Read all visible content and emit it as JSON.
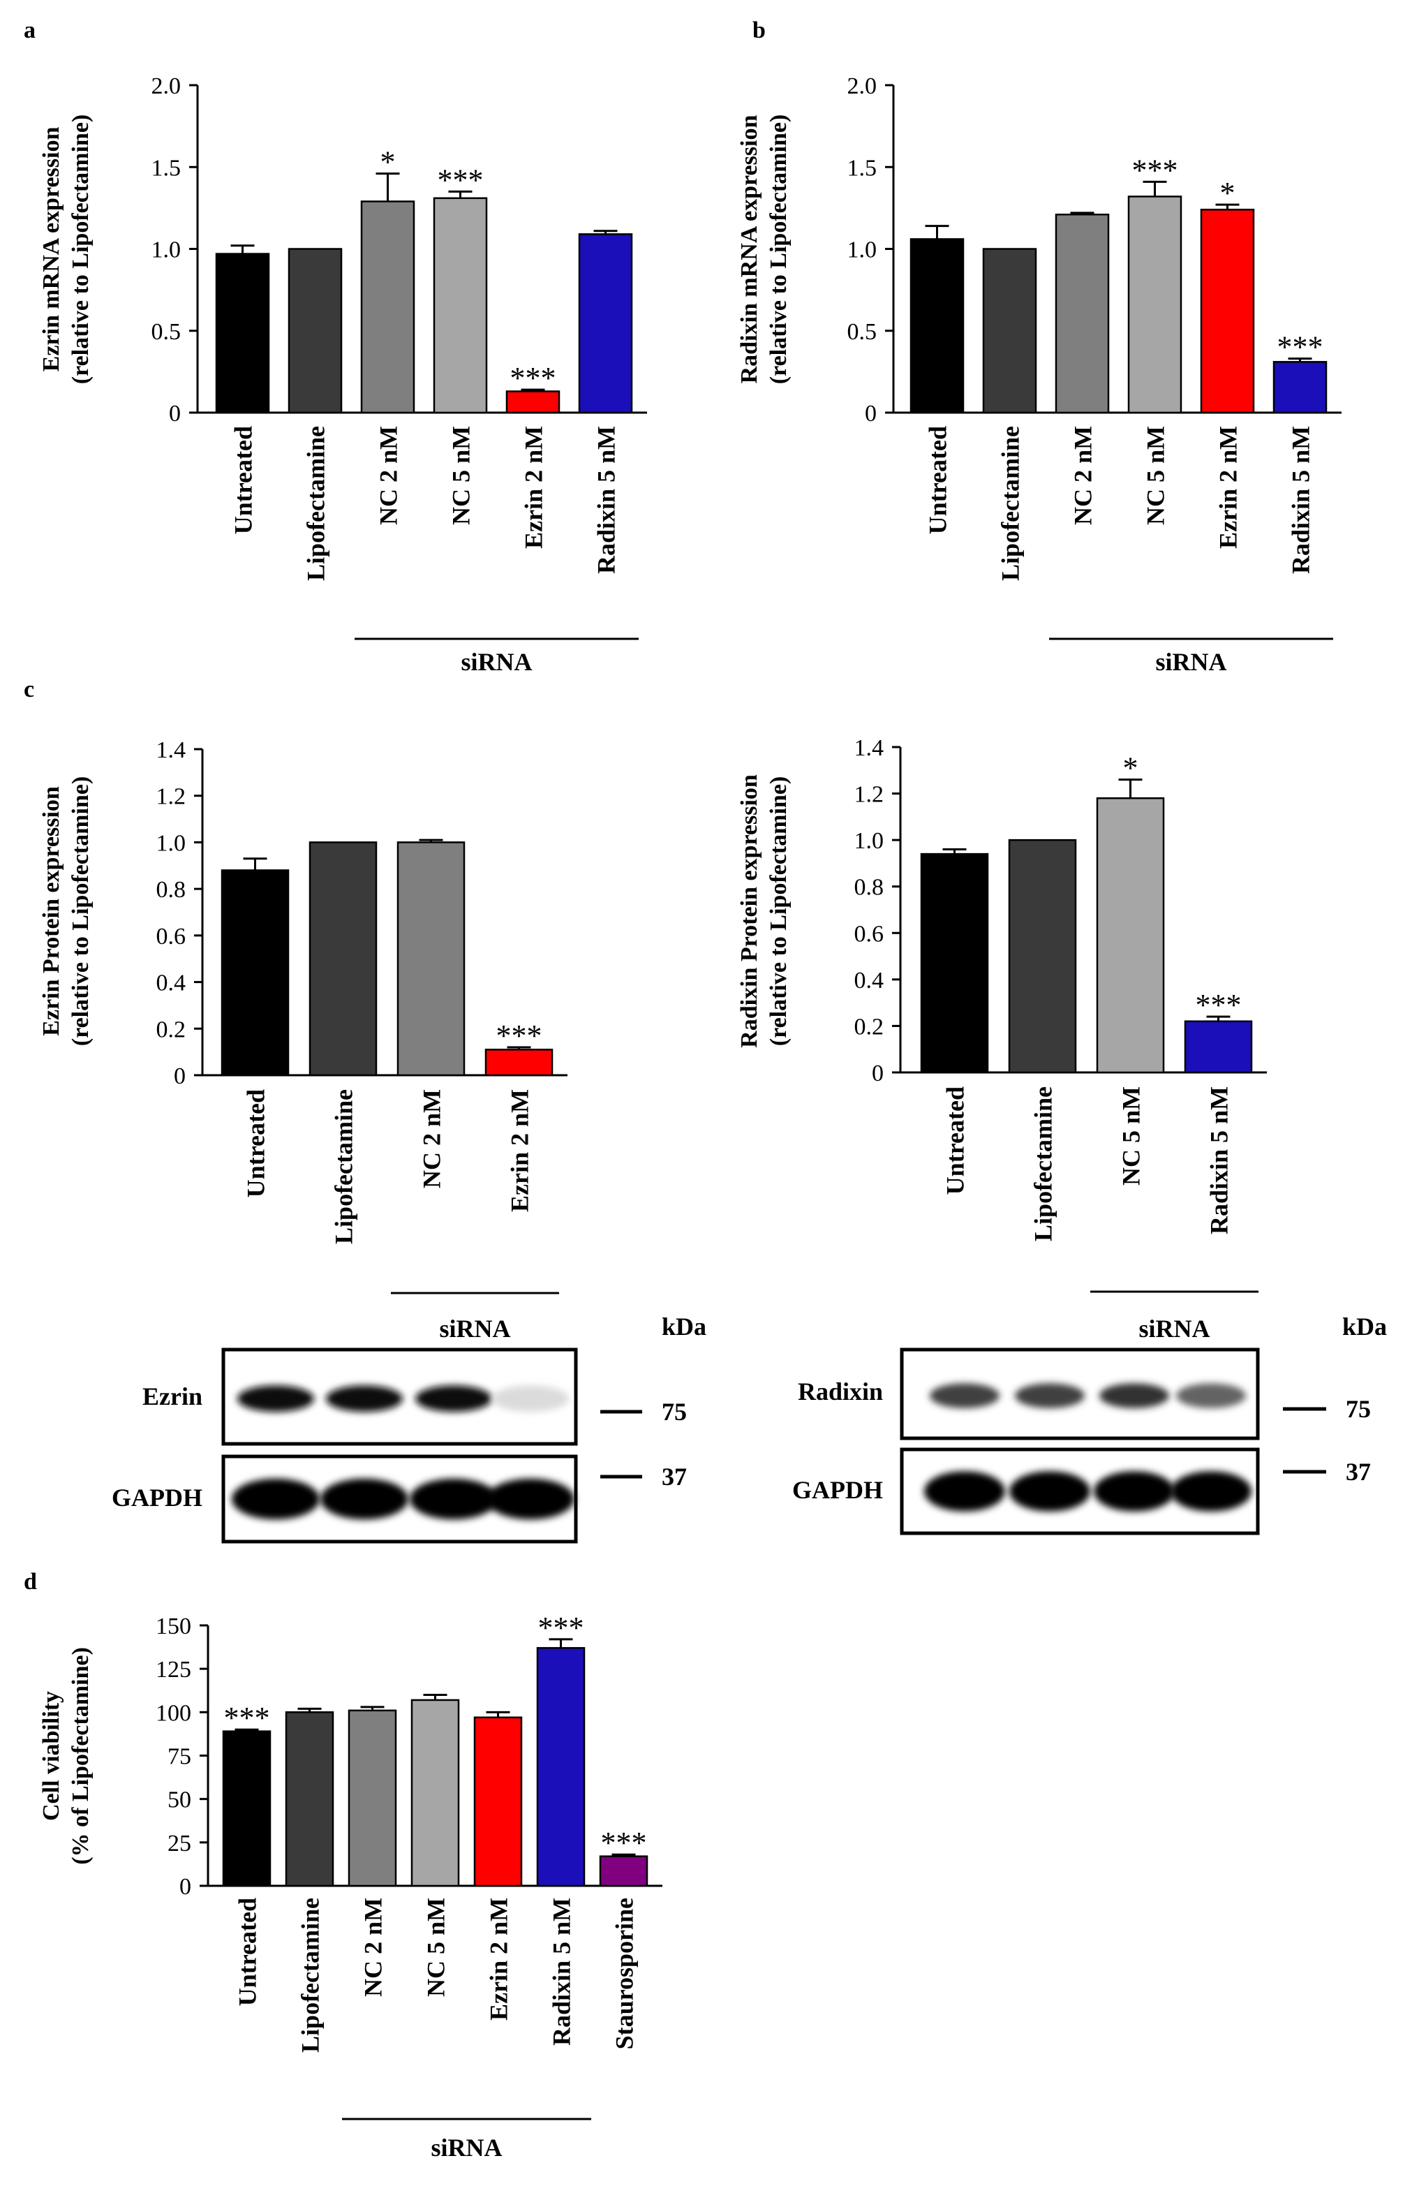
{
  "chart_data": [
    {
      "type": "bar",
      "panel": "a",
      "ylabel_line1": "Ezrin mRNA expression",
      "ylabel_line2": "(relative to Lipofectamine)",
      "ylim": [
        0,
        2.0
      ],
      "yticks": [
        0,
        0.5,
        1.0,
        1.5,
        2.0
      ],
      "ytick_labels": [
        "0",
        "0.5",
        "1.0",
        "1.5",
        "2.0"
      ],
      "categories": [
        "Untreated",
        "Lipofectamine",
        "NC 2 nM",
        "NC 5 nM",
        "Ezrin 2 nM",
        "Radixin 5 nM"
      ],
      "values": [
        0.97,
        1.0,
        1.29,
        1.31,
        0.13,
        1.09
      ],
      "errors": [
        0.05,
        0.0,
        0.17,
        0.04,
        0.01,
        0.02
      ],
      "colors": [
        "#000000",
        "#3a3a3a",
        "#7f7f7f",
        "#a6a6a6",
        "#ff0000",
        "#1a0fb8"
      ],
      "significance": [
        "",
        "",
        "*",
        "***",
        "***",
        ""
      ],
      "group_label": "siRNA",
      "group_start": 2,
      "group_end": 5
    },
    {
      "type": "bar",
      "panel": "b",
      "ylabel_line1": "Radixin mRNA expression",
      "ylabel_line2": "(relative to Lipofectamine)",
      "ylim": [
        0,
        2.0
      ],
      "yticks": [
        0,
        0.5,
        1.0,
        1.5,
        2.0
      ],
      "ytick_labels": [
        "0",
        "0.5",
        "1.0",
        "1.5",
        "2.0"
      ],
      "categories": [
        "Untreated",
        "Lipofectamine",
        "NC 2 nM",
        "NC 5 nM",
        "Ezrin 2 nM",
        "Radixin 5 nM"
      ],
      "values": [
        1.06,
        1.0,
        1.21,
        1.32,
        1.24,
        0.31
      ],
      "errors": [
        0.08,
        0.0,
        0.01,
        0.09,
        0.03,
        0.02
      ],
      "colors": [
        "#000000",
        "#3a3a3a",
        "#7f7f7f",
        "#a6a6a6",
        "#ff0000",
        "#1a0fb8"
      ],
      "significance": [
        "",
        "",
        "",
        "***",
        "*",
        "***"
      ],
      "group_label": "siRNA",
      "group_start": 2,
      "group_end": 5
    },
    {
      "type": "bar",
      "panel": "c",
      "ylabel_line1": "Ezrin Protein expression",
      "ylabel_line2": "(relative to Lipofectamine)",
      "ylim": [
        0,
        1.4
      ],
      "yticks": [
        0,
        0.2,
        0.4,
        0.6,
        0.8,
        1.0,
        1.2,
        1.4
      ],
      "ytick_labels": [
        "0",
        "0.2",
        "0.4",
        "0.6",
        "0.8",
        "1.0",
        "1.2",
        "1.4"
      ],
      "categories": [
        "Untreated",
        "Lipofectamine",
        "NC 2 nM",
        "Ezrin 2 nM"
      ],
      "values": [
        0.88,
        1.0,
        1.0,
        0.11
      ],
      "errors": [
        0.05,
        0.0,
        0.01,
        0.01
      ],
      "colors": [
        "#000000",
        "#3a3a3a",
        "#7f7f7f",
        "#ff0000"
      ],
      "significance": [
        "",
        "",
        "",
        "***"
      ],
      "group_label": "siRNA",
      "group_start": 2,
      "group_end": 3
    },
    {
      "type": "bar",
      "panel": "",
      "ylabel_line1": "Radixin Protein expression",
      "ylabel_line2": "(relative to Lipofectamine)",
      "ylim": [
        0,
        1.4
      ],
      "yticks": [
        0,
        0.2,
        0.4,
        0.6,
        0.8,
        1.0,
        1.2,
        1.4
      ],
      "ytick_labels": [
        "0",
        "0.2",
        "0.4",
        "0.6",
        "0.8",
        "1.0",
        "1.2",
        "1.4"
      ],
      "categories": [
        "Untreated",
        "Lipofectamine",
        "NC 5 nM",
        "Radixin 5 nM"
      ],
      "values": [
        0.94,
        1.0,
        1.18,
        0.22
      ],
      "errors": [
        0.02,
        0.0,
        0.08,
        0.02
      ],
      "colors": [
        "#000000",
        "#3a3a3a",
        "#a6a6a6",
        "#1a0fb8"
      ],
      "significance": [
        "",
        "",
        "*",
        "***"
      ],
      "group_label": "siRNA",
      "group_start": 2,
      "group_end": 3
    },
    {
      "type": "bar",
      "panel": "d",
      "ylabel_line1": "Cell viability",
      "ylabel_line2": "(% of Lipofectamine)",
      "ylim": [
        0,
        150
      ],
      "yticks": [
        0,
        25,
        50,
        75,
        100,
        125,
        150
      ],
      "ytick_labels": [
        "0",
        "25",
        "50",
        "75",
        "100",
        "125",
        "150"
      ],
      "categories": [
        "Untreated",
        "Lipofectamine",
        "NC 2 nM",
        "NC 5 nM",
        "Ezrin 2 nM",
        "Radixin 5 nM",
        "Staurosporine"
      ],
      "values": [
        89,
        100,
        101,
        107,
        97,
        137,
        17
      ],
      "errors": [
        1,
        2,
        2,
        3,
        3,
        5,
        1
      ],
      "colors": [
        "#000000",
        "#3a3a3a",
        "#7f7f7f",
        "#a6a6a6",
        "#ff0000",
        "#1a0fb8",
        "#800080"
      ],
      "significance": [
        "***",
        "",
        "",
        "",
        "",
        "***",
        "***"
      ],
      "group_label": "siRNA",
      "group_start": 2,
      "group_end": 5
    }
  ],
  "blots": [
    {
      "label_top": "Ezrin",
      "label_bottom": "GAPDH",
      "kda_title": "kDa",
      "marker_top": "75",
      "marker_bottom": "37",
      "bands_top": [
        1.0,
        1.0,
        1.0,
        0.15
      ],
      "bands_bottom": [
        1.0,
        1.0,
        1.0,
        1.0
      ]
    },
    {
      "label_top": "Radixin",
      "label_bottom": "GAPDH",
      "kda_title": "kDa",
      "marker_top": "75",
      "marker_bottom": "37",
      "bands_top": [
        0.8,
        0.8,
        0.85,
        0.65
      ],
      "bands_bottom": [
        1.0,
        1.0,
        1.0,
        1.0
      ]
    }
  ]
}
